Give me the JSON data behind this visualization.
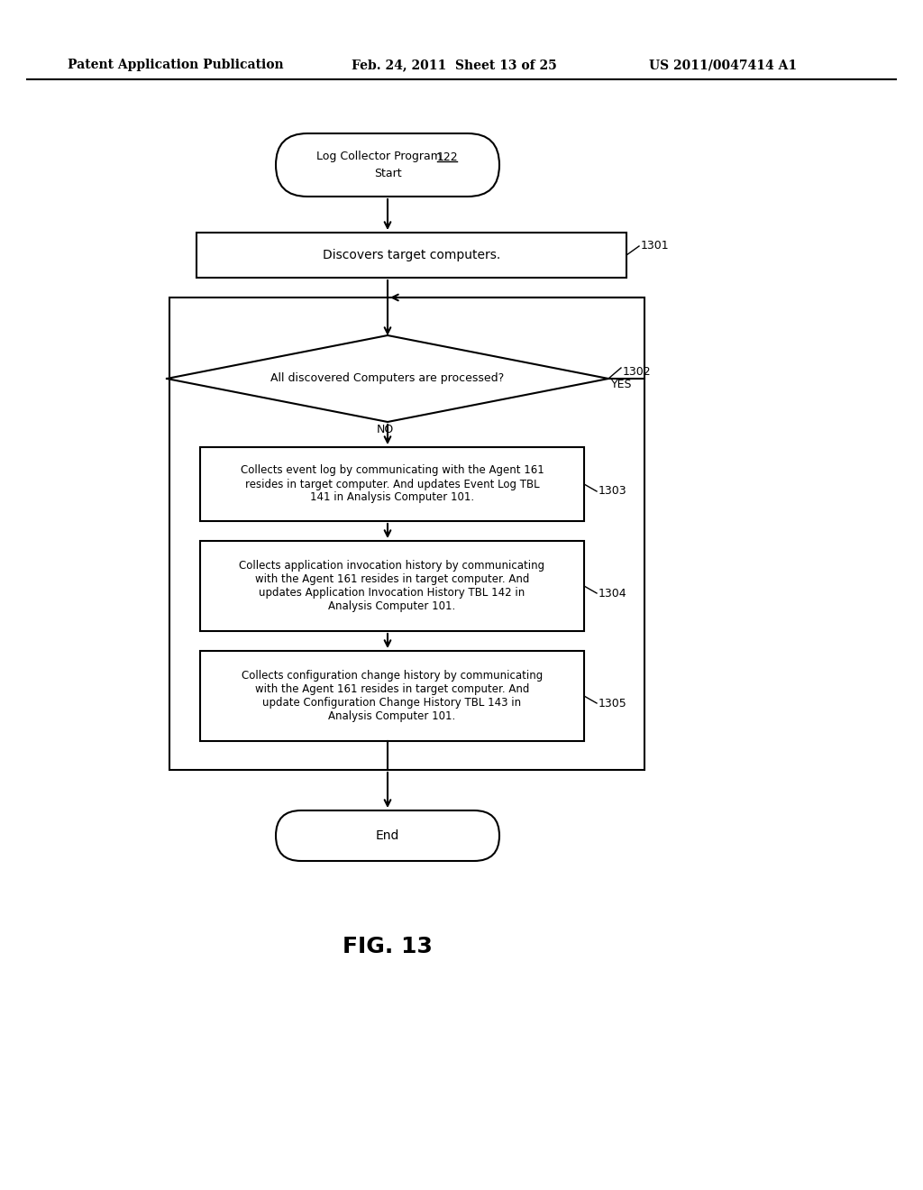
{
  "bg_color": "#ffffff",
  "header_left": "Patent Application Publication",
  "header_mid": "Feb. 24, 2011  Sheet 13 of 25",
  "header_right": "US 2011/0047414 A1",
  "fig_label": "FIG. 13",
  "box1_label": "Discovers target computers.",
  "box1_ref": "1301",
  "diamond_label": "All discovered Computers are processed?",
  "diamond_ref": "1302",
  "yes_label": "YES",
  "no_label": "NO",
  "box2_label": "Collects event log by communicating with the Agent 161\nresides in target computer. And updates Event Log TBL\n141 in Analysis Computer 101.",
  "box2_ref": "1303",
  "box3_label": "Collects application invocation history by communicating\nwith the Agent 161 resides in target computer. And\nupdates Application Invocation History TBL 142 in\nAnalysis Computer 101.",
  "box3_ref": "1304",
  "box4_label": "Collects configuration change history by communicating\nwith the Agent 161 resides in target computer. And\nupdate Configuration Change History TBL 143 in\nAnalysis Computer 101.",
  "box4_ref": "1305",
  "end_label": "End",
  "line_color": "#000000",
  "text_color": "#000000"
}
